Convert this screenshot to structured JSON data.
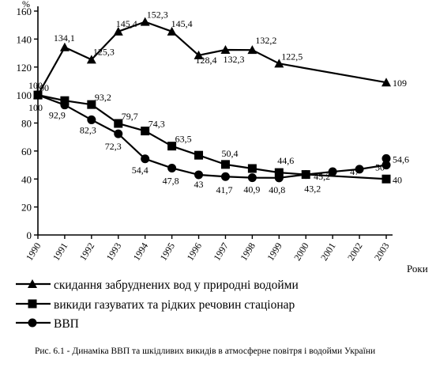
{
  "chart_data": {
    "type": "line",
    "y_unit": "%",
    "xlabel": "Роки",
    "ylabel": "",
    "ylim": [
      0,
      160
    ],
    "y_ticks": [
      0,
      20,
      40,
      60,
      80,
      100,
      120,
      140,
      160
    ],
    "x": [
      "1990",
      "1991",
      "1992",
      "1993",
      "1994",
      "1995",
      "1996",
      "1997",
      "1998",
      "1999",
      "2000",
      "2001",
      "2002",
      "2003"
    ],
    "grid": false,
    "legend_position": "bottom-left",
    "series": [
      {
        "name": "скидання забруднених вод у природні водойми",
        "marker": "triangle",
        "points": [
          {
            "x": "1990",
            "y": 100,
            "label": "100"
          },
          {
            "x": "1991",
            "y": 134.1,
            "label": "134,1"
          },
          {
            "x": "1992",
            "y": 125.3,
            "label": "125,3"
          },
          {
            "x": "1993",
            "y": 145.4,
            "label": "145,4"
          },
          {
            "x": "1994",
            "y": 152.3,
            "label": "152,3"
          },
          {
            "x": "1995",
            "y": 145.4,
            "label": "145,4"
          },
          {
            "x": "1996",
            "y": 128.4,
            "label": "128,4"
          },
          {
            "x": "1997",
            "y": 132.3,
            "label": "132,3"
          },
          {
            "x": "1998",
            "y": 132.2,
            "label": "132,2"
          },
          {
            "x": "1999",
            "y": 122.5,
            "label": "122,5"
          },
          {
            "x": "2003",
            "y": 109,
            "label": "109"
          }
        ]
      },
      {
        "name": "викиди газуватих та рідких речовин стаціонар",
        "marker": "square",
        "points": [
          {
            "x": "1990",
            "y": 100,
            "label": "100"
          },
          {
            "x": "1991",
            "y": 96,
            "label": ""
          },
          {
            "x": "1992",
            "y": 93.2,
            "label": "93,2"
          },
          {
            "x": "1993",
            "y": 79.7,
            "label": "79,7"
          },
          {
            "x": "1994",
            "y": 74.3,
            "label": "74,3"
          },
          {
            "x": "1995",
            "y": 63.5,
            "label": "63,5"
          },
          {
            "x": "1996",
            "y": 57,
            "label": ""
          },
          {
            "x": "1997",
            "y": 50.4,
            "label": "50,4"
          },
          {
            "x": "1998",
            "y": 47.5,
            "label": ""
          },
          {
            "x": "1999",
            "y": 44.6,
            "label": "44,6"
          },
          {
            "x": "2000",
            "y": 43.2,
            "label": "43,2"
          },
          {
            "x": "2003",
            "y": 40,
            "label": "40"
          }
        ]
      },
      {
        "name": "ВВП",
        "marker": "circle",
        "points": [
          {
            "x": "1990",
            "y": 100,
            "label": "100"
          },
          {
            "x": "1991",
            "y": 92.9,
            "label": "92,9"
          },
          {
            "x": "1992",
            "y": 82.3,
            "label": "82,3"
          },
          {
            "x": "1993",
            "y": 72.3,
            "label": "72,3"
          },
          {
            "x": "1994",
            "y": 54.4,
            "label": "54,4"
          },
          {
            "x": "1995",
            "y": 47.8,
            "label": "47,8"
          },
          {
            "x": "1996",
            "y": 43,
            "label": "43"
          },
          {
            "x": "1997",
            "y": 41.7,
            "label": "41,7"
          },
          {
            "x": "1998",
            "y": 40.9,
            "label": "40,9"
          },
          {
            "x": "1999",
            "y": 40.8,
            "label": "40,8"
          },
          {
            "x": "2000",
            "y": 43.2,
            "label": ""
          },
          {
            "x": "2001",
            "y": 45.2,
            "label": "45,2"
          },
          {
            "x": "2002",
            "y": 47,
            "label": "47"
          },
          {
            "x": "2003",
            "y": 50,
            "label": "50"
          },
          {
            "x": "2003",
            "y": 54.6,
            "label": "54,6"
          }
        ]
      }
    ]
  },
  "caption": {
    "text": "Рис. 6.1 - Динаміка ВВП та шкідливих викидів в атмосферне повітря і водойми України"
  }
}
